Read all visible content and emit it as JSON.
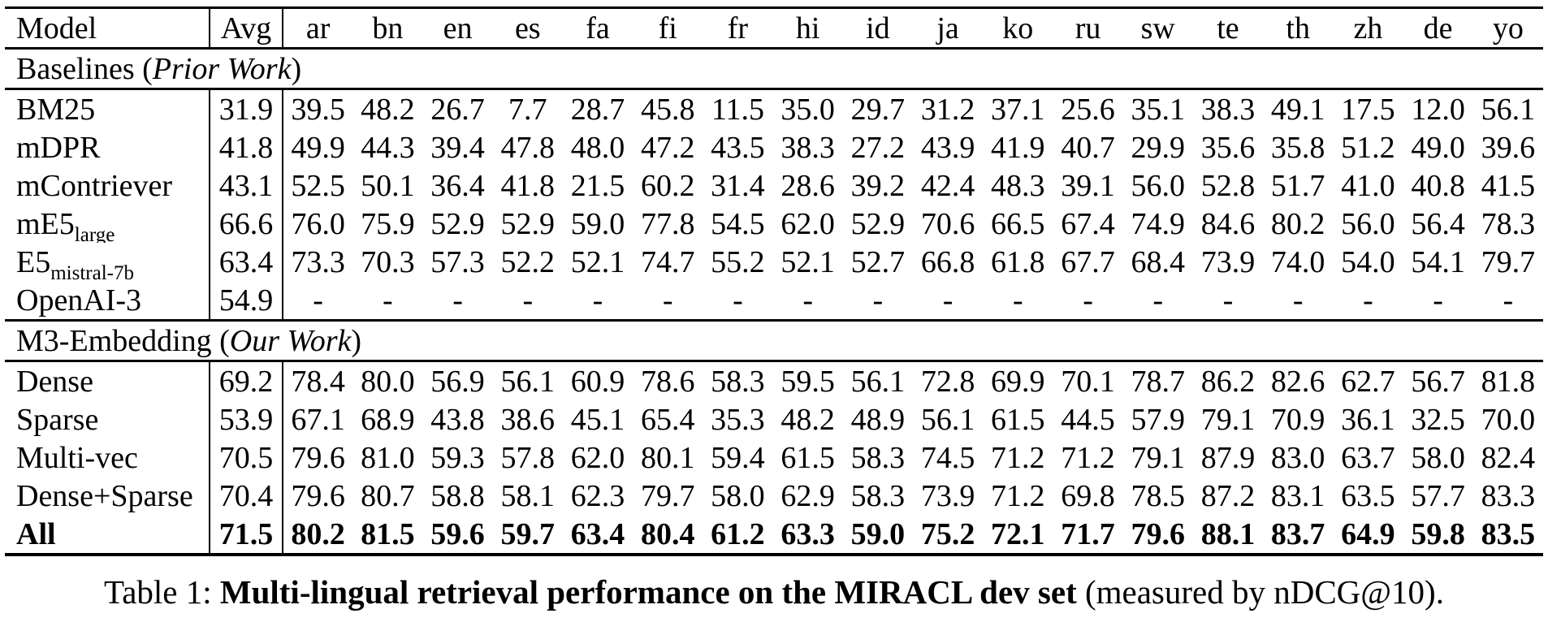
{
  "caption": {
    "prefix": "Table 1: ",
    "bold": "Multi-lingual retrieval performance on the MIRACL dev set",
    "suffix": " (measured by nDCG@10)."
  },
  "table": {
    "columns": [
      "Model",
      "Avg",
      "ar",
      "bn",
      "en",
      "es",
      "fa",
      "fi",
      "fr",
      "hi",
      "id",
      "ja",
      "ko",
      "ru",
      "sw",
      "te",
      "th",
      "zh",
      "de",
      "yo"
    ],
    "sections": [
      {
        "title": {
          "prefix": "Baselines (",
          "italic": "Prior Work",
          "suffix": ")"
        },
        "rows": [
          {
            "model": "BM25",
            "sub": "",
            "bold": false,
            "avg": "31.9",
            "values": [
              "39.5",
              "48.2",
              "26.7",
              "7.7",
              "28.7",
              "45.8",
              "11.5",
              "35.0",
              "29.7",
              "31.2",
              "37.1",
              "25.6",
              "35.1",
              "38.3",
              "49.1",
              "17.5",
              "12.0",
              "56.1"
            ]
          },
          {
            "model": "mDPR",
            "sub": "",
            "bold": false,
            "avg": "41.8",
            "values": [
              "49.9",
              "44.3",
              "39.4",
              "47.8",
              "48.0",
              "47.2",
              "43.5",
              "38.3",
              "27.2",
              "43.9",
              "41.9",
              "40.7",
              "29.9",
              "35.6",
              "35.8",
              "51.2",
              "49.0",
              "39.6"
            ]
          },
          {
            "model": "mContriever",
            "sub": "",
            "bold": false,
            "avg": "43.1",
            "values": [
              "52.5",
              "50.1",
              "36.4",
              "41.8",
              "21.5",
              "60.2",
              "31.4",
              "28.6",
              "39.2",
              "42.4",
              "48.3",
              "39.1",
              "56.0",
              "52.8",
              "51.7",
              "41.0",
              "40.8",
              "41.5"
            ]
          },
          {
            "model": "mE5",
            "sub": "large",
            "bold": false,
            "avg": "66.6",
            "values": [
              "76.0",
              "75.9",
              "52.9",
              "52.9",
              "59.0",
              "77.8",
              "54.5",
              "62.0",
              "52.9",
              "70.6",
              "66.5",
              "67.4",
              "74.9",
              "84.6",
              "80.2",
              "56.0",
              "56.4",
              "78.3"
            ]
          },
          {
            "model": "E5",
            "sub": "mistral-7b",
            "bold": false,
            "avg": "63.4",
            "values": [
              "73.3",
              "70.3",
              "57.3",
              "52.2",
              "52.1",
              "74.7",
              "55.2",
              "52.1",
              "52.7",
              "66.8",
              "61.8",
              "67.7",
              "68.4",
              "73.9",
              "74.0",
              "54.0",
              "54.1",
              "79.7"
            ]
          },
          {
            "model": "OpenAI-3",
            "sub": "",
            "bold": false,
            "avg": "54.9",
            "values": [
              "-",
              "-",
              "-",
              "-",
              "-",
              "-",
              "-",
              "-",
              "-",
              "-",
              "-",
              "-",
              "-",
              "-",
              "-",
              "-",
              "-",
              "-"
            ]
          }
        ]
      },
      {
        "title": {
          "prefix": "M3-Embedding (",
          "italic": "Our Work",
          "suffix": ")"
        },
        "rows": [
          {
            "model": "Dense",
            "sub": "",
            "bold": false,
            "avg": "69.2",
            "values": [
              "78.4",
              "80.0",
              "56.9",
              "56.1",
              "60.9",
              "78.6",
              "58.3",
              "59.5",
              "56.1",
              "72.8",
              "69.9",
              "70.1",
              "78.7",
              "86.2",
              "82.6",
              "62.7",
              "56.7",
              "81.8"
            ]
          },
          {
            "model": "Sparse",
            "sub": "",
            "bold": false,
            "avg": "53.9",
            "values": [
              "67.1",
              "68.9",
              "43.8",
              "38.6",
              "45.1",
              "65.4",
              "35.3",
              "48.2",
              "48.9",
              "56.1",
              "61.5",
              "44.5",
              "57.9",
              "79.1",
              "70.9",
              "36.1",
              "32.5",
              "70.0"
            ]
          },
          {
            "model": "Multi-vec",
            "sub": "",
            "bold": false,
            "avg": "70.5",
            "values": [
              "79.6",
              "81.0",
              "59.3",
              "57.8",
              "62.0",
              "80.1",
              "59.4",
              "61.5",
              "58.3",
              "74.5",
              "71.2",
              "71.2",
              "79.1",
              "87.9",
              "83.0",
              "63.7",
              "58.0",
              "82.4"
            ]
          },
          {
            "model": "Dense+Sparse",
            "sub": "",
            "bold": false,
            "avg": "70.4",
            "values": [
              "79.6",
              "80.7",
              "58.8",
              "58.1",
              "62.3",
              "79.7",
              "58.0",
              "62.9",
              "58.3",
              "73.9",
              "71.2",
              "69.8",
              "78.5",
              "87.2",
              "83.1",
              "63.5",
              "57.7",
              "83.3"
            ]
          },
          {
            "model": "All",
            "sub": "",
            "bold": true,
            "avg": "71.5",
            "values": [
              "80.2",
              "81.5",
              "59.6",
              "59.7",
              "63.4",
              "80.4",
              "61.2",
              "63.3",
              "59.0",
              "75.2",
              "72.1",
              "71.7",
              "79.6",
              "88.1",
              "83.7",
              "64.9",
              "59.8",
              "83.5"
            ]
          }
        ]
      }
    ]
  }
}
